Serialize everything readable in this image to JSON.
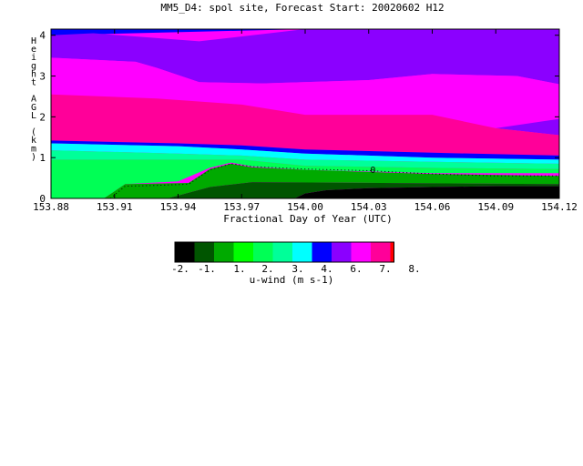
{
  "chart_data": {
    "type": "heatmap",
    "title": "MM5_D4: spol site,  Forecast Start: 20020602 H12",
    "xlabel": "Fractional Day of Year (UTC)",
    "ylabel": "Height AGL (km)",
    "xlim": [
      153.88,
      154.12
    ],
    "ylim": [
      0,
      4.15
    ],
    "x_ticks": [
      "153.88",
      "153.91",
      "153.94",
      "153.97",
      "154.00",
      "154.03",
      "154.06",
      "154.09",
      "154.12"
    ],
    "x_tick_values": [
      153.88,
      153.91,
      153.94,
      153.97,
      154.0,
      154.03,
      154.06,
      154.09,
      154.12
    ],
    "y_ticks": [
      "0",
      "1",
      "2",
      "3",
      "4"
    ],
    "y_tick_values": [
      0,
      1,
      2,
      3,
      4
    ],
    "contour_label": "0",
    "contour_line": {
      "x": [
        153.908,
        153.915,
        153.93,
        153.945,
        153.955,
        153.965,
        153.975,
        154.0,
        154.03,
        154.06,
        154.09,
        154.12
      ],
      "y": [
        0.0,
        0.3,
        0.32,
        0.35,
        0.7,
        0.85,
        0.78,
        0.72,
        0.68,
        0.6,
        0.55,
        0.55
      ]
    },
    "bands": [
      {
        "color": "#0000ff",
        "points": [
          [
            153.88,
            4.15
          ],
          [
            154.12,
            4.15
          ],
          [
            154.12,
            4.15
          ],
          [
            154.0,
            4.15
          ],
          [
            153.88,
            4.0
          ]
        ]
      },
      {
        "color": "#8b00ff",
        "points": [
          [
            153.88,
            4.0
          ],
          [
            153.9,
            4.05
          ],
          [
            153.95,
            3.85
          ],
          [
            154.0,
            4.15
          ],
          [
            154.12,
            4.15
          ],
          [
            154.12,
            2.8
          ],
          [
            154.1,
            3.0
          ],
          [
            154.06,
            3.05
          ],
          [
            154.03,
            2.9
          ],
          [
            153.98,
            2.82
          ],
          [
            153.95,
            2.85
          ],
          [
            153.93,
            3.2
          ],
          [
            153.92,
            3.35
          ],
          [
            153.88,
            3.45
          ]
        ]
      },
      {
        "color": "#ff00ff",
        "points": [
          [
            153.88,
            3.45
          ],
          [
            153.92,
            3.35
          ],
          [
            153.93,
            3.2
          ],
          [
            153.95,
            2.85
          ],
          [
            153.98,
            2.82
          ],
          [
            154.03,
            2.9
          ],
          [
            154.06,
            3.05
          ],
          [
            154.1,
            3.0
          ],
          [
            154.12,
            2.8
          ],
          [
            154.12,
            1.95
          ],
          [
            154.09,
            1.72
          ],
          [
            154.06,
            2.05
          ],
          [
            154.0,
            2.05
          ],
          [
            153.97,
            2.3
          ],
          [
            153.93,
            2.45
          ],
          [
            153.88,
            2.55
          ]
        ]
      },
      {
        "color": "#8b00ff",
        "points": [
          [
            154.12,
            1.95
          ],
          [
            154.09,
            1.72
          ],
          [
            154.12,
            1.55
          ]
        ]
      },
      {
        "color": "#ff0099",
        "points": [
          [
            153.88,
            2.55
          ],
          [
            153.93,
            2.45
          ],
          [
            153.97,
            2.3
          ],
          [
            154.0,
            2.05
          ],
          [
            154.06,
            2.05
          ],
          [
            154.09,
            1.72
          ],
          [
            154.12,
            1.55
          ],
          [
            154.12,
            1.05
          ],
          [
            154.06,
            1.12
          ],
          [
            154.0,
            1.2
          ],
          [
            153.97,
            1.3
          ],
          [
            153.94,
            1.35
          ],
          [
            153.88,
            1.42
          ]
        ]
      },
      {
        "color": "#0000ff",
        "points": [
          [
            153.88,
            1.42
          ],
          [
            153.94,
            1.35
          ],
          [
            153.97,
            1.3
          ],
          [
            154.0,
            1.2
          ],
          [
            154.06,
            1.12
          ],
          [
            154.12,
            1.05
          ],
          [
            154.12,
            0.95
          ],
          [
            154.06,
            1.0
          ],
          [
            154.0,
            1.1
          ],
          [
            153.97,
            1.2
          ],
          [
            153.94,
            1.28
          ],
          [
            153.88,
            1.35
          ]
        ]
      },
      {
        "color": "#00ffff",
        "points": [
          [
            153.88,
            1.35
          ],
          [
            153.94,
            1.28
          ],
          [
            153.97,
            1.2
          ],
          [
            154.0,
            1.1
          ],
          [
            154.06,
            1.0
          ],
          [
            154.12,
            0.95
          ],
          [
            154.12,
            0.85
          ],
          [
            154.06,
            0.9
          ],
          [
            154.0,
            0.95
          ],
          [
            153.97,
            1.05
          ],
          [
            153.94,
            1.1
          ],
          [
            153.88,
            1.18
          ]
        ]
      },
      {
        "color": "#00ff99",
        "points": [
          [
            153.88,
            1.18
          ],
          [
            153.94,
            1.1
          ],
          [
            153.97,
            1.05
          ],
          [
            154.0,
            0.95
          ],
          [
            154.06,
            0.9
          ],
          [
            154.12,
            0.85
          ],
          [
            154.12,
            0.72
          ],
          [
            154.06,
            0.75
          ],
          [
            154.0,
            0.8
          ],
          [
            153.97,
            0.95
          ],
          [
            153.94,
            0.95
          ],
          [
            153.88,
            0.95
          ]
        ]
      },
      {
        "color": "#00ff55",
        "points": [
          [
            153.88,
            0.95
          ],
          [
            153.94,
            0.95
          ],
          [
            153.97,
            0.95
          ],
          [
            154.0,
            0.8
          ],
          [
            154.06,
            0.75
          ],
          [
            154.12,
            0.72
          ],
          [
            154.12,
            0.62
          ],
          [
            154.06,
            0.62
          ],
          [
            154.0,
            0.7
          ],
          [
            153.975,
            0.78
          ],
          [
            153.965,
            0.88
          ],
          [
            153.955,
            0.75
          ],
          [
            153.94,
            0.42
          ],
          [
            153.915,
            0.35
          ],
          [
            153.905,
            0.0
          ],
          [
            153.88,
            0.0
          ]
        ]
      },
      {
        "color": "#00aa00",
        "points": [
          [
            153.905,
            0.0
          ],
          [
            153.915,
            0.35
          ],
          [
            153.945,
            0.38
          ],
          [
            153.955,
            0.72
          ],
          [
            153.965,
            0.85
          ],
          [
            153.975,
            0.76
          ],
          [
            154.0,
            0.7
          ],
          [
            154.06,
            0.6
          ],
          [
            154.12,
            0.55
          ],
          [
            154.12,
            0.35
          ],
          [
            153.975,
            0.4
          ],
          [
            153.955,
            0.28
          ],
          [
            153.935,
            0.0
          ]
        ]
      },
      {
        "color": "#005500",
        "points": [
          [
            153.935,
            0.0
          ],
          [
            153.955,
            0.28
          ],
          [
            153.975,
            0.4
          ],
          [
            154.12,
            0.35
          ],
          [
            154.12,
            0.3
          ],
          [
            154.09,
            0.3
          ],
          [
            154.06,
            0.28
          ],
          [
            154.03,
            0.25
          ],
          [
            154.01,
            0.2
          ],
          [
            154.0,
            0.12
          ],
          [
            153.995,
            0.0
          ]
        ]
      },
      {
        "color": "#000000",
        "points": [
          [
            153.995,
            0.0
          ],
          [
            154.0,
            0.12
          ],
          [
            154.01,
            0.2
          ],
          [
            154.03,
            0.25
          ],
          [
            154.06,
            0.28
          ],
          [
            154.09,
            0.3
          ],
          [
            154.12,
            0.3
          ],
          [
            154.12,
            0.0
          ]
        ]
      }
    ],
    "colorbar": {
      "label": "u-wind (m s-1)",
      "colors": [
        "#000000",
        "#005500",
        "#00aa00",
        "#00ff00",
        "#00ff55",
        "#00ff99",
        "#00ffff",
        "#0000ff",
        "#8b00ff",
        "#ff00ff",
        "#ff0099",
        "#ff0000"
      ],
      "tick_labels": [
        "-2.",
        "-1.",
        "1.",
        "2.",
        "3.",
        "4.",
        "6.",
        "7.",
        "8."
      ]
    }
  }
}
